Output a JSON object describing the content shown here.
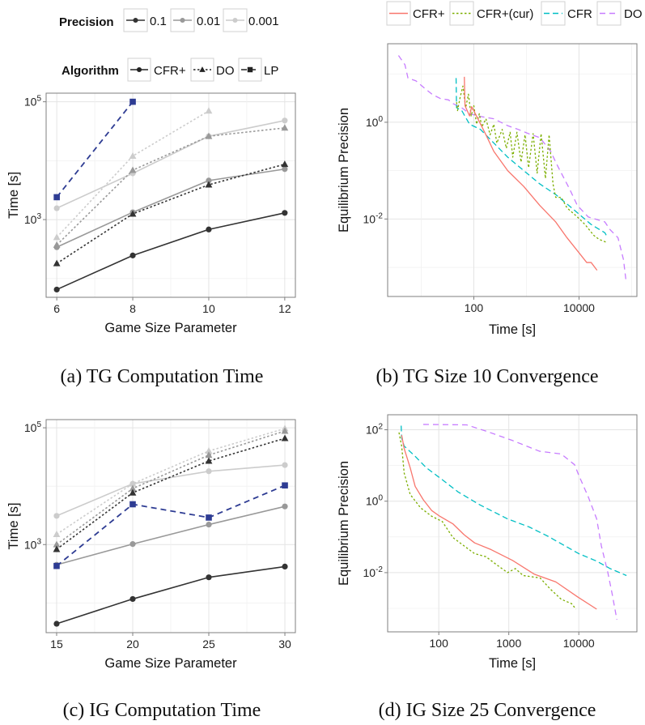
{
  "captions": {
    "a": "(a) TG Computation Time",
    "b": "(b) TG Size 10 Convergence",
    "c": "(c) IG Computation Time",
    "d": "(d) IG Size 25 Convergence"
  },
  "legend_time": {
    "precision_title": "Precision",
    "precision_items": [
      {
        "label": "0.1",
        "color": "#333333"
      },
      {
        "label": "0.01",
        "color": "#999999"
      },
      {
        "label": "0.001",
        "color": "#cccccc"
      }
    ],
    "algorithm_title": "Algorithm",
    "algorithm_items": [
      {
        "label": "CFR+",
        "shape": "circle",
        "dash": "solid"
      },
      {
        "label": "DO",
        "shape": "triangle",
        "dash": "dotted"
      },
      {
        "label": "LP",
        "shape": "square",
        "dash": "dashed"
      }
    ]
  },
  "legend_convergence": {
    "items": [
      {
        "label": "CFR+",
        "color": "#F8766D",
        "dash": "solid"
      },
      {
        "label": "CFR+(cur)",
        "color": "#7CAE00",
        "dash": "dotted"
      },
      {
        "label": "CFR",
        "color": "#00BFC4",
        "dash": "dashed"
      },
      {
        "label": "DO",
        "color": "#C77CFF",
        "dash": "longdash"
      }
    ]
  },
  "chart_data": [
    {
      "id": "a",
      "type": "line",
      "xlabel": "Game Size Parameter",
      "ylabel": "Time [s]",
      "yscale": "log",
      "xlim": [
        5.72,
        12.28
      ],
      "ylim": [
        48,
        140000
      ],
      "grid": true,
      "x": [
        6,
        8,
        10,
        12
      ],
      "xticks": [
        6,
        8,
        10,
        12
      ],
      "xtick_labels": [
        "6",
        "8",
        "10",
        "12"
      ],
      "yticks": [
        1000,
        100000
      ],
      "ytick_labels": [
        "10^3",
        "10^5"
      ],
      "series": [
        {
          "algorithm": "CFR+",
          "precision": "0.001",
          "color": "#cccccc",
          "values": [
            1560,
            6100,
            26000,
            48000
          ]
        },
        {
          "algorithm": "DO",
          "precision": "0.001",
          "color": "#cccccc",
          "values": [
            500,
            12000,
            70000,
            null
          ]
        },
        {
          "algorithm": "CFR+",
          "precision": "0.01",
          "color": "#999999",
          "values": [
            340,
            1330,
            4600,
            7200
          ]
        },
        {
          "algorithm": "DO",
          "precision": "0.01",
          "color": "#999999",
          "values": [
            370,
            6900,
            26000,
            36000
          ]
        },
        {
          "algorithm": "CFR+",
          "precision": "0.1",
          "color": "#333333",
          "values": [
            65,
            246,
            680,
            1300
          ]
        },
        {
          "algorithm": "DO",
          "precision": "0.1",
          "color": "#333333",
          "values": [
            180,
            1250,
            3900,
            8700
          ]
        },
        {
          "algorithm": "LP",
          "precision": "",
          "color": "#2E3C93",
          "values": [
            2400,
            100000,
            null,
            null
          ]
        }
      ]
    },
    {
      "id": "b",
      "type": "line",
      "xlabel": "Time [s]",
      "ylabel": "Equilibrium Precision",
      "xscale": "log",
      "yscale": "log",
      "xlim": [
        2.3,
        126000
      ],
      "ylim": [
        0.00025,
        42
      ],
      "grid": true,
      "xticks": [
        100,
        10000
      ],
      "xtick_labels": [
        "100",
        "10000"
      ],
      "yticks": [
        0.01,
        1
      ],
      "ytick_labels": [
        "10^-2",
        "10^0"
      ],
      "legend": "top",
      "series": [
        {
          "name": "DO",
          "color": "#C77CFF",
          "dash": "longdash",
          "x": [
            3.7,
            4.9,
            5.6,
            7.9,
            12,
            16,
            23,
            33,
            41,
            59,
            83,
            120,
            170,
            240,
            440,
            700,
            1100,
            1800,
            2900,
            3600,
            4600,
            6600,
            9300,
            15000,
            31000,
            39000,
            55000,
            70000,
            79000
          ],
          "y": [
            24,
            15.5,
            8.2,
            7.2,
            4.9,
            3.8,
            3.1,
            2.9,
            2.4,
            2.0,
            1.5,
            1.35,
            1.26,
            1.18,
            0.85,
            0.71,
            0.58,
            0.48,
            0.25,
            0.15,
            0.089,
            0.042,
            0.019,
            0.011,
            0.0087,
            0.006,
            0.0041,
            0.00145,
            0.00048
          ]
        },
        {
          "name": "CFR",
          "color": "#00BFC4",
          "dash": "dashed",
          "x": [
            46,
            47,
            59,
            83,
            134,
            215,
            440,
            890,
            1800,
            3600,
            8300,
            17000,
            31000,
            33000
          ],
          "y": [
            8.2,
            2.0,
            1.74,
            0.91,
            0.71,
            0.42,
            0.19,
            0.1,
            0.053,
            0.032,
            0.015,
            0.0077,
            0.0052,
            0.0046
          ]
        },
        {
          "name": "CFR+(cur)",
          "color": "#7CAE00",
          "dash": "dotted",
          "x": [
            47,
            49,
            55,
            62,
            70,
            79,
            89,
            100,
            113,
            127,
            142,
            170,
            204,
            240,
            274,
            346,
            415,
            490,
            550,
            660,
            790,
            940,
            1100,
            1340,
            1600,
            1900,
            2300,
            2700,
            3200,
            3600,
            4600,
            5900,
            9300,
            13000,
            19000,
            24000,
            33000
          ],
          "y": [
            2.6,
            1.74,
            3.3,
            5.6,
            2.0,
            3.8,
            1.35,
            2.2,
            0.91,
            1.5,
            0.8,
            1.18,
            0.55,
            0.91,
            0.37,
            0.71,
            0.29,
            0.62,
            0.19,
            0.62,
            0.15,
            0.55,
            0.115,
            0.58,
            0.089,
            0.58,
            0.069,
            0.55,
            0.053,
            0.028,
            0.028,
            0.017,
            0.011,
            0.0077,
            0.0046,
            0.0038,
            0.0033
          ]
        },
        {
          "name": "CFR+",
          "color": "#F8766D",
          "dash": "solid",
          "x": [
            66,
            68,
            83,
            91,
            107,
            170,
            240,
            440,
            890,
            1800,
            3600,
            5900,
            10000,
            14000,
            17000,
            22000
          ],
          "y": [
            8.7,
            2.2,
            1.35,
            2.1,
            1.5,
            0.55,
            0.25,
            0.1,
            0.047,
            0.019,
            0.0087,
            0.0041,
            0.002,
            0.00126,
            0.00126,
            0.00087
          ]
        }
      ]
    },
    {
      "id": "c",
      "type": "line",
      "xlabel": "Game Size Parameter",
      "ylabel": "Time [s]",
      "yscale": "log",
      "xlim": [
        14.31,
        30.69
      ],
      "ylim": [
        31,
        138000
      ],
      "grid": true,
      "x": [
        15,
        20,
        25,
        30
      ],
      "xticks": [
        15,
        20,
        25,
        30
      ],
      "xtick_labels": [
        "15",
        "20",
        "25",
        "30"
      ],
      "yticks": [
        1000,
        100000
      ],
      "ytick_labels": [
        "10^3",
        "10^5"
      ],
      "series": [
        {
          "algorithm": "CFR+",
          "precision": "0.001",
          "color": "#cccccc",
          "values": [
            3100,
            11000,
            18000,
            23000
          ]
        },
        {
          "algorithm": "DO",
          "precision": "0.001",
          "color": "#cccccc",
          "values": [
            1500,
            11000,
            40000,
            97000
          ]
        },
        {
          "algorithm": "CFR+",
          "precision": "0.01",
          "color": "#999999",
          "values": [
            450,
            1020,
            2200,
            4500
          ]
        },
        {
          "algorithm": "DO",
          "precision": "0.01",
          "color": "#999999",
          "values": [
            1000,
            9100,
            34000,
            88000
          ]
        },
        {
          "algorithm": "CFR+",
          "precision": "0.1",
          "color": "#333333",
          "values": [
            44,
            117,
            275,
            420
          ]
        },
        {
          "algorithm": "DO",
          "precision": "0.1",
          "color": "#333333",
          "values": [
            830,
            7700,
            27000,
            66000
          ]
        },
        {
          "algorithm": "LP",
          "precision": "",
          "color": "#2E3C93",
          "values": [
            430,
            4900,
            2900,
            10300
          ]
        }
      ]
    },
    {
      "id": "d",
      "type": "line",
      "xlabel": "Time [s]",
      "ylabel": "Equilibrium Precision",
      "xscale": "log",
      "yscale": "log",
      "xlim": [
        18.6,
        67600
      ],
      "ylim": [
        0.00022,
        263
      ],
      "grid": true,
      "xticks": [
        100,
        1000,
        10000
      ],
      "xtick_labels": [
        "100",
        "1000",
        "10000"
      ],
      "yticks": [
        0.01,
        1,
        100
      ],
      "ytick_labels": [
        "10^-2",
        "10^0",
        "10^2"
      ],
      "series": [
        {
          "name": "DO",
          "color": "#C77CFF",
          "dash": "longdash",
          "x": [
            60,
            250,
            470,
            1130,
            2750,
            5600,
            8700,
            10000,
            13700,
            18000,
            21000,
            26000,
            30000,
            35000
          ],
          "y": [
            141,
            137,
            92,
            50,
            25,
            21,
            10.5,
            5.3,
            1.3,
            0.32,
            0.056,
            0.01,
            0.0025,
            0.00048
          ]
        },
        {
          "name": "CFR",
          "color": "#00BFC4",
          "dash": "dashed",
          "x": [
            29,
            29.5,
            32,
            46,
            66,
            112,
            190,
            390,
            960,
            1950,
            3600,
            10000,
            18000,
            28000,
            48000
          ],
          "y": [
            130,
            59,
            35,
            18,
            8.7,
            4.0,
            1.8,
            0.78,
            0.32,
            0.19,
            0.105,
            0.034,
            0.021,
            0.013,
            0.0083
          ]
        },
        {
          "name": "CFR+(cur)",
          "color": "#7CAE00",
          "dash": "dotted",
          "x": [
            27,
            29.5,
            32,
            39,
            55,
            79,
            112,
            160,
            230,
            325,
            470,
            660,
            960,
            1240,
            1600,
            2800,
            3900,
            5600,
            7900,
            9100
          ],
          "y": [
            84,
            35,
            6.2,
            1.55,
            0.65,
            0.38,
            0.27,
            0.095,
            0.056,
            0.034,
            0.028,
            0.017,
            0.01,
            0.013,
            0.0083,
            0.0071,
            0.0035,
            0.0018,
            0.00135,
            0.00095
          ]
        },
        {
          "name": "CFR+",
          "color": "#F8766D",
          "dash": "solid",
          "x": [
            29.5,
            32,
            39,
            46,
            60,
            79,
            103,
            160,
            230,
            325,
            560,
            1130,
            2300,
            4700,
            9600,
            18000
          ],
          "y": [
            71,
            30,
            8.7,
            2.6,
            1.1,
            0.55,
            0.38,
            0.23,
            0.115,
            0.068,
            0.044,
            0.022,
            0.0091,
            0.0055,
            0.0021,
            0.00095
          ]
        }
      ]
    }
  ]
}
